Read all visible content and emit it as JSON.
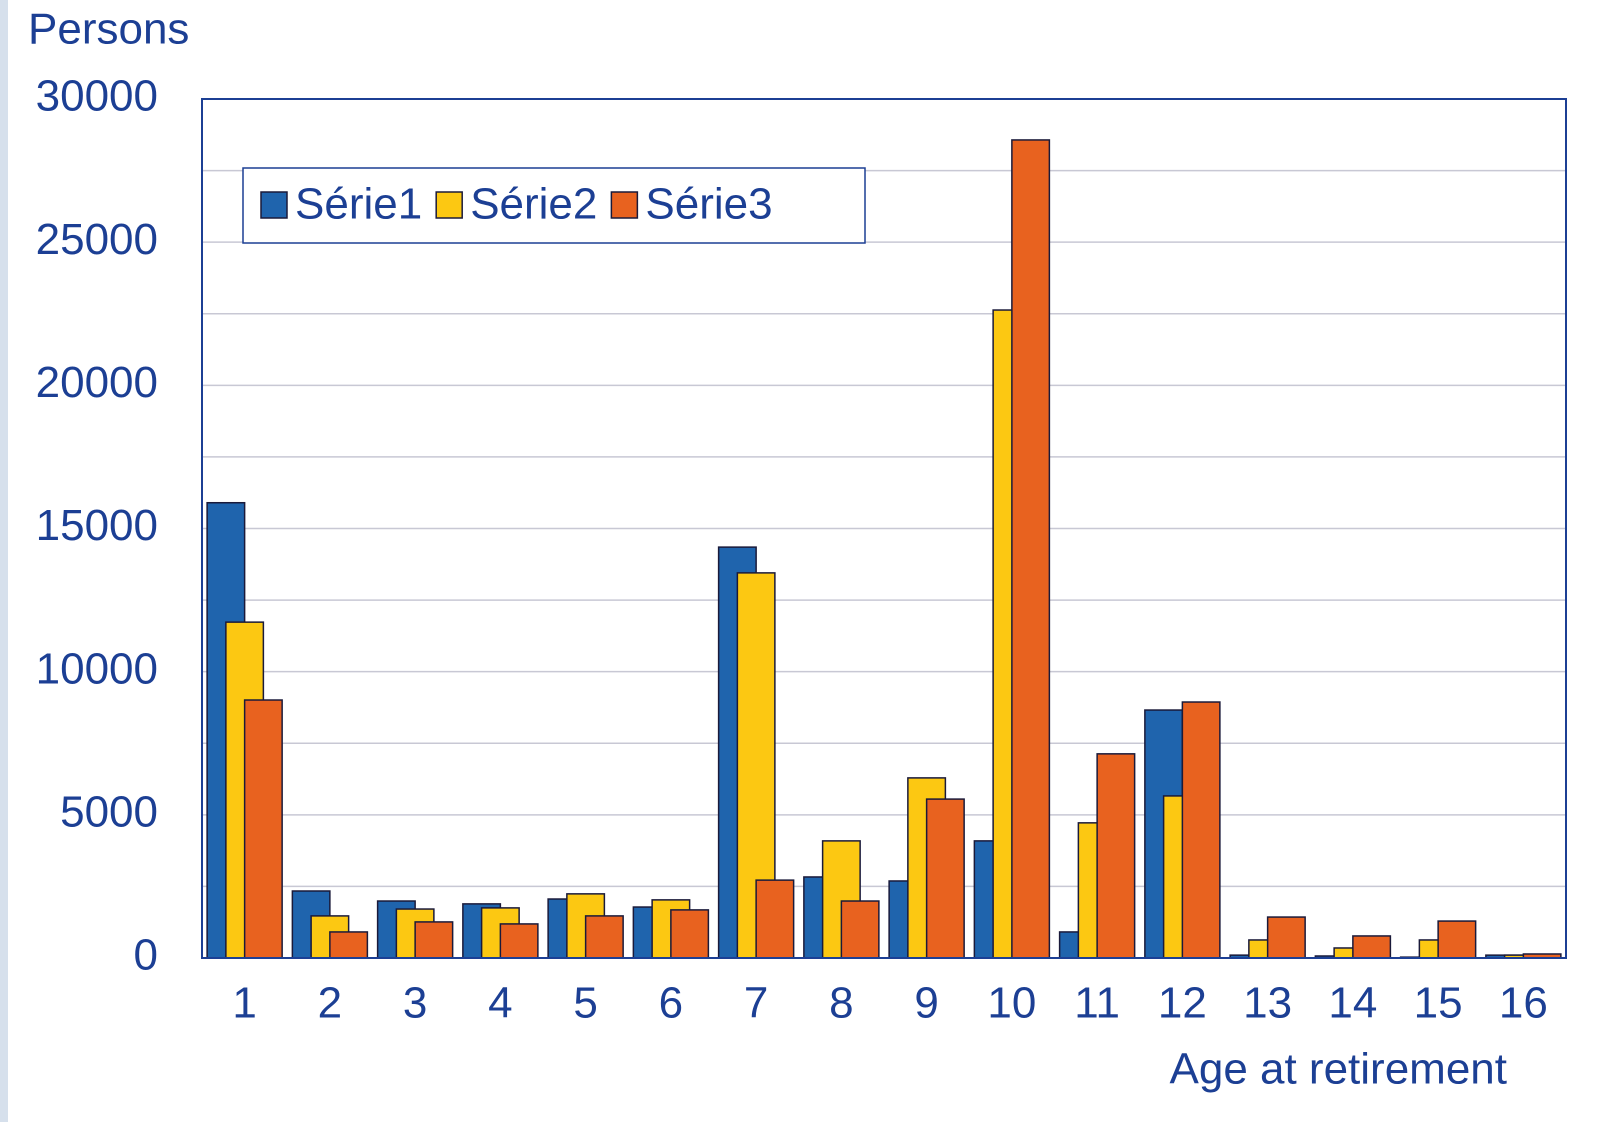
{
  "chart_data": {
    "type": "bar",
    "y_axis_label": "Persons",
    "x_axis_label": "Age at retirement",
    "categories": [
      "1",
      "2",
      "3",
      "4",
      "5",
      "6",
      "7",
      "8",
      "9",
      "10",
      "11",
      "12",
      "13",
      "14",
      "15",
      "16"
    ],
    "series": [
      {
        "name": "Série1",
        "color": "#1f64ad",
        "values": [
          15900,
          2340,
          1990,
          1890,
          2060,
          1780,
          14350,
          2830,
          2690,
          4090,
          910,
          8660,
          100,
          70,
          30,
          100
        ]
      },
      {
        "name": "Série2",
        "color": "#fcc812",
        "values": [
          11730,
          1470,
          1710,
          1750,
          2240,
          2030,
          13450,
          4090,
          6290,
          22630,
          4720,
          5660,
          630,
          350,
          630,
          100
        ]
      },
      {
        "name": "Série3",
        "color": "#e8621f",
        "values": [
          9010,
          910,
          1260,
          1190,
          1470,
          1680,
          2720,
          1990,
          5550,
          28570,
          7130,
          8940,
          1430,
          770,
          1290,
          140
        ]
      }
    ],
    "ylim": [
      0,
      30000
    ],
    "yticks": [
      0,
      5000,
      10000,
      15000,
      20000,
      25000,
      30000
    ],
    "minor_grid": [
      2500,
      7500,
      12500,
      17500,
      22500,
      27500
    ],
    "grid": true,
    "legend": "top-left"
  }
}
